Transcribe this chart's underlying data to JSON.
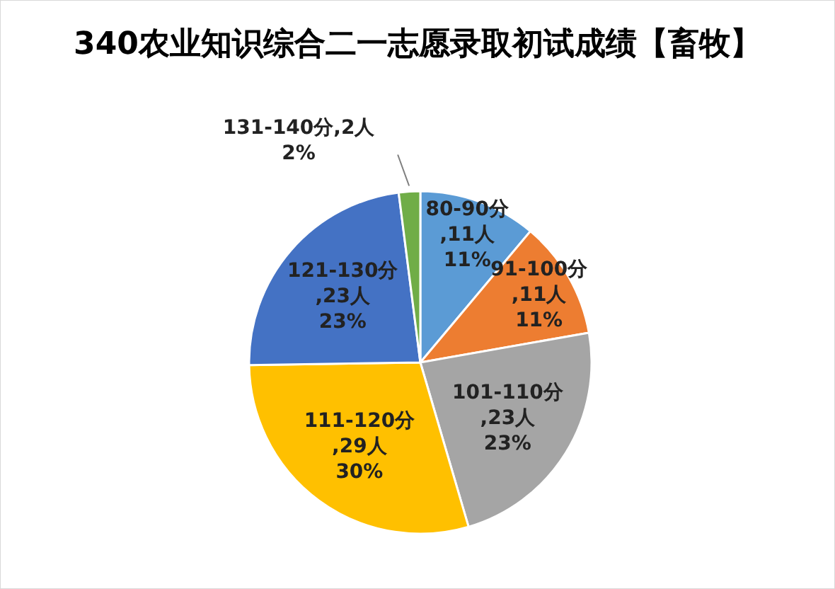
{
  "chart_data": {
    "type": "pie",
    "title": "340农业知识综合二一志愿录取初试成绩【畜牧】",
    "categories": [
      "80-90分",
      "91-100分",
      "101-110分",
      "111-120分",
      "121-130分",
      "131-140分"
    ],
    "values": [
      11,
      11,
      23,
      29,
      23,
      2
    ],
    "value_labels": [
      ",11人 11%",
      ",11人 11%",
      ",23人 23%",
      ",29人 30%",
      ",23人 23%",
      ",2人 2%"
    ],
    "colors": [
      "#5b9bd5",
      "#ed7d31",
      "#a5a5a5",
      "#ffc000",
      "#4472c4",
      "#70ad47"
    ],
    "legend": false
  }
}
